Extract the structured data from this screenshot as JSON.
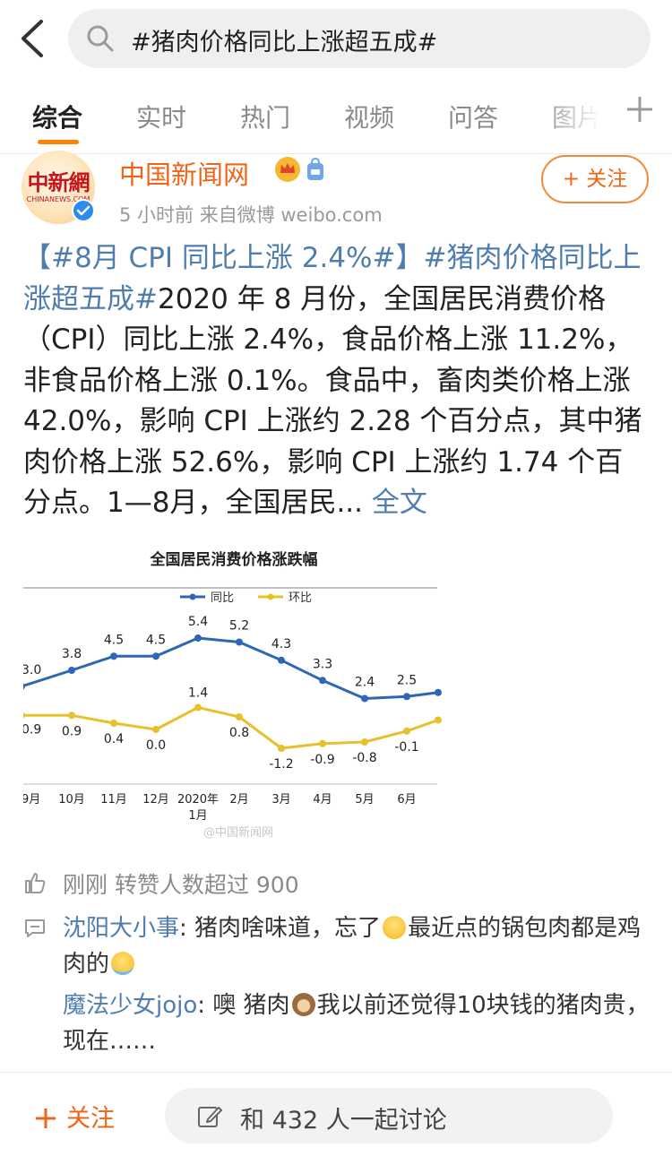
{
  "search": {
    "query": "#猪肉价格同比上涨超五成#"
  },
  "tabs": [
    {
      "label": "综合"
    },
    {
      "label": "实时"
    },
    {
      "label": "热门"
    },
    {
      "label": "视频"
    },
    {
      "label": "问答"
    },
    {
      "label": "图片"
    }
  ],
  "post": {
    "avatar_text": "中新網",
    "avatar_sub": "CHINANEWS.COM",
    "author": "中国新闻网",
    "meta": "5 小时前   来自微博 weibo.com",
    "follow_label": "+ 关注",
    "tag1": "【#8月 CPI 同比上涨 2.4%#】",
    "tag2": "#猪肉价格同比上涨超五成#",
    "text": "2020 年 8 月份，全国居民消费价格（CPI）同比上涨 2.4%，食品价格上涨 11.2%，非食品价格上涨 0.1%。食品中，畜肉类价格上涨 42.0%，影响 CPI 上涨约 2.28 个百分点，其中猪肉价格上涨 52.6%，影响 CPI 上涨约 1.74 个百分点。1—8月，全国居民...",
    "more_label": "全文"
  },
  "chart_data": {
    "type": "line",
    "title": "全国居民消费价格涨跌幅",
    "categories": [
      "9月",
      "10月",
      "11月",
      "12月",
      "2020年1月",
      "2月",
      "3月",
      "4月",
      "5月",
      "6月",
      ""
    ],
    "series": [
      {
        "name": "同比",
        "color": "#2e67b5",
        "values": [
          3.0,
          3.8,
          4.5,
          4.5,
          5.4,
          5.2,
          4.3,
          3.3,
          2.4,
          2.5,
          2.7
        ]
      },
      {
        "name": "环比",
        "color": "#e8c02c",
        "values": [
          0.9,
          0.9,
          0.4,
          0.0,
          1.4,
          0.8,
          -1.2,
          -0.9,
          -0.8,
          -0.1,
          0.6
        ]
      }
    ],
    "watermark": "@中国新闻网",
    "grid": false,
    "legend": "top"
  },
  "reposts": {
    "label": "刚刚 转赞人数超过 900"
  },
  "comments": [
    {
      "user": "沈阳大小事",
      "text_a": "猪肉啥味道，忘了",
      "text_b": "最近点的锅包肉都是鸡肉的"
    },
    {
      "user": "魔法少女jojo",
      "text_a": "噢 猪肉",
      "text_b": "我以前还觉得10块钱的猪肉贵，现在……"
    }
  ],
  "bottom": {
    "follow_label": "关注",
    "discuss_label": "和 432 人一起讨论"
  }
}
